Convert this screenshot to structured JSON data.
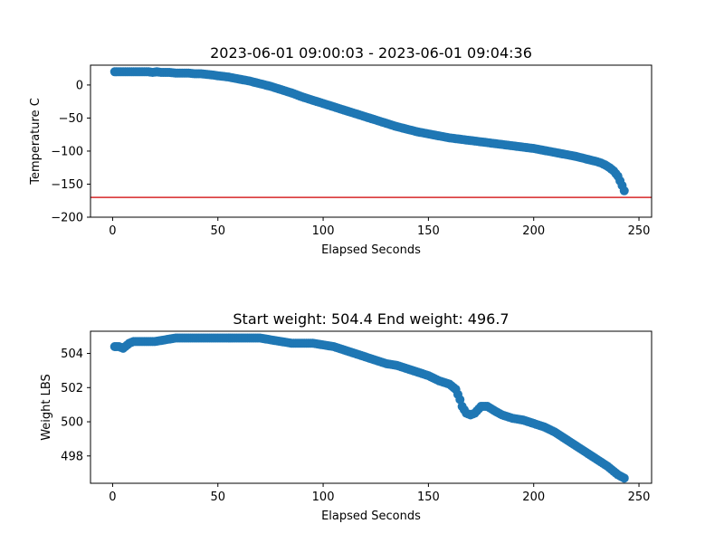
{
  "chart_data": [
    {
      "type": "scatter",
      "title": "2023-06-01 09:00:03 - 2023-06-01 09:04:36",
      "xlabel": "Elapsed Seconds",
      "ylabel": "Temperature C",
      "xlim": [
        -10.5,
        256
      ],
      "ylim": [
        -200,
        30
      ],
      "xticks": [
        0,
        50,
        100,
        150,
        200,
        250
      ],
      "yticks": [
        0,
        -50,
        -100,
        -150,
        -200
      ],
      "grid": false,
      "series_color": "#1f77b4",
      "reference_line": {
        "y": -170,
        "color": "#d62728"
      },
      "x": [
        1,
        3,
        5,
        7,
        9,
        11,
        13,
        15,
        17,
        19,
        21,
        23,
        25,
        27,
        30,
        33,
        36,
        39,
        42,
        45,
        48,
        50,
        55,
        60,
        65,
        70,
        75,
        80,
        85,
        90,
        95,
        100,
        105,
        110,
        115,
        120,
        125,
        130,
        135,
        140,
        145,
        150,
        155,
        160,
        165,
        170,
        175,
        180,
        185,
        190,
        195,
        200,
        205,
        210,
        215,
        220,
        225,
        230,
        232,
        234,
        236,
        238,
        240,
        241,
        242,
        243
      ],
      "y": [
        20,
        20,
        20,
        20,
        20,
        20,
        20,
        20,
        20,
        19,
        20,
        19,
        19,
        19,
        18,
        18,
        18,
        17,
        17,
        16,
        15,
        14,
        12,
        9,
        6,
        2,
        -2,
        -7,
        -12,
        -18,
        -23,
        -28,
        -33,
        -38,
        -43,
        -48,
        -53,
        -58,
        -63,
        -67,
        -71,
        -74,
        -77,
        -80,
        -82,
        -84,
        -86,
        -88,
        -90,
        -92,
        -94,
        -96,
        -99,
        -102,
        -105,
        -108,
        -112,
        -116,
        -118,
        -121,
        -125,
        -130,
        -138,
        -145,
        -152,
        -160
      ]
    },
    {
      "type": "scatter",
      "title": "Start weight: 504.4 End weight: 496.7",
      "xlabel": "Elapsed Seconds",
      "ylabel": "Weight LBS",
      "xlim": [
        -10.5,
        256
      ],
      "ylim": [
        496.4,
        505.3
      ],
      "xticks": [
        0,
        50,
        100,
        150,
        200,
        250
      ],
      "yticks": [
        504,
        502,
        500,
        498
      ],
      "grid": false,
      "series_color": "#1f77b4",
      "x": [
        1,
        3,
        5,
        8,
        10,
        15,
        20,
        25,
        30,
        35,
        40,
        45,
        50,
        55,
        60,
        65,
        70,
        75,
        80,
        85,
        90,
        95,
        100,
        105,
        110,
        115,
        120,
        125,
        130,
        135,
        140,
        145,
        150,
        155,
        160,
        163,
        165,
        166,
        168,
        170,
        172,
        175,
        178,
        182,
        185,
        190,
        195,
        200,
        205,
        210,
        215,
        220,
        225,
        230,
        235,
        240,
        243
      ],
      "y": [
        504.4,
        504.4,
        504.3,
        504.6,
        504.7,
        504.7,
        504.7,
        504.8,
        504.9,
        504.9,
        504.9,
        504.9,
        504.9,
        504.9,
        504.9,
        504.9,
        504.9,
        504.8,
        504.7,
        504.6,
        504.6,
        504.6,
        504.5,
        504.4,
        504.2,
        504.0,
        503.8,
        503.6,
        503.4,
        503.3,
        503.1,
        502.9,
        502.7,
        502.4,
        502.2,
        501.9,
        501.3,
        500.9,
        500.5,
        500.4,
        500.5,
        500.9,
        500.9,
        500.6,
        500.4,
        500.2,
        500.1,
        499.9,
        499.7,
        499.4,
        499.0,
        498.6,
        498.2,
        497.8,
        497.4,
        496.9,
        496.7
      ]
    }
  ]
}
